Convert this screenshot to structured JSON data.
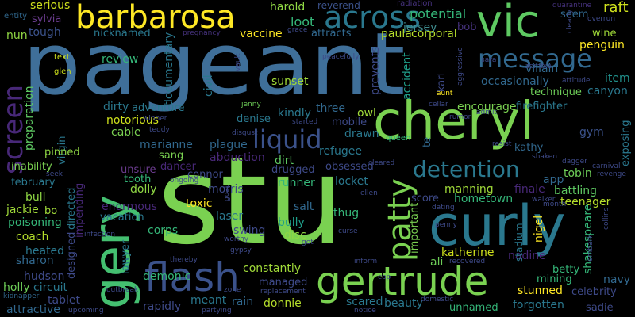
{
  "words": [
    {
      "text": "pageant",
      "color": "#3f6f99"
    },
    {
      "text": "stu",
      "color": "#7ad151"
    },
    {
      "text": "cheryl",
      "color": "#7ad151"
    },
    {
      "text": "curly",
      "color": "#2a788e"
    },
    {
      "text": "gertrude",
      "color": "#7ad151"
    },
    {
      "text": "barbarosa",
      "color": "#fde725"
    },
    {
      "text": "vic",
      "color": "#5ec962"
    },
    {
      "text": "gery",
      "color": "#44bf70"
    },
    {
      "text": "flash",
      "color": "#3b528b"
    },
    {
      "text": "across",
      "color": "#2a788e"
    },
    {
      "text": "message",
      "color": "#31688e"
    },
    {
      "text": "screen",
      "color": "#482878"
    },
    {
      "text": "patty",
      "color": "#7ad151"
    },
    {
      "text": "liquid",
      "color": "#3b528b"
    },
    {
      "text": "detention",
      "color": "#2a788e"
    },
    {
      "text": "serious",
      "color": "#cfe11c"
    },
    {
      "text": "harold",
      "color": "#8fd744"
    },
    {
      "text": "reverend",
      "color": "#3b528b"
    },
    {
      "text": "radiation",
      "color": "#46327e"
    },
    {
      "text": "quarantine",
      "color": "#46327e"
    },
    {
      "text": "raft",
      "color": "#cfe11c"
    },
    {
      "text": "entity",
      "color": "#31688e"
    },
    {
      "text": "sylvia",
      "color": "#6b3c8e"
    },
    {
      "text": "loot",
      "color": "#35b779"
    },
    {
      "text": "potential",
      "color": "#35b779"
    },
    {
      "text": "jersey",
      "color": "#3e8a8c"
    },
    {
      "text": "bob",
      "color": "#46327e"
    },
    {
      "text": "nun",
      "color": "#90d743"
    },
    {
      "text": "tough",
      "color": "#3b528b"
    },
    {
      "text": "nicknamed",
      "color": "#2a788e"
    },
    {
      "text": "vaccine",
      "color": "#fde725"
    },
    {
      "text": "attracts",
      "color": "#31688e"
    },
    {
      "text": "paula",
      "color": "#b5de2b"
    },
    {
      "text": "corporal",
      "color": "#b5de2b"
    },
    {
      "text": "wine",
      "color": "#a0da39"
    },
    {
      "text": "seem",
      "color": "#31688e"
    },
    {
      "text": "penguin",
      "color": "#fde725"
    },
    {
      "text": "text",
      "color": "#cfe11c"
    },
    {
      "text": "glen",
      "color": "#cfe11c"
    },
    {
      "text": "pregnancy",
      "color": "#46327e"
    },
    {
      "text": "preparation",
      "color": "#5ec962"
    },
    {
      "text": "review",
      "color": "#35b779"
    },
    {
      "text": "documentary",
      "color": "#2a788e"
    },
    {
      "text": "civil",
      "color": "#2a788e"
    },
    {
      "text": "sunset",
      "color": "#a0da39"
    },
    {
      "text": "prevents",
      "color": "#3e4a89"
    },
    {
      "text": "accident",
      "color": "#1f9e89"
    },
    {
      "text": "karl",
      "color": "#3e4a89"
    },
    {
      "text": "villain",
      "color": "#31688e"
    },
    {
      "text": "occasionally",
      "color": "#31688e"
    },
    {
      "text": "technique",
      "color": "#6ece58"
    },
    {
      "text": "item",
      "color": "#21918c"
    },
    {
      "text": "canyon",
      "color": "#2a788e"
    },
    {
      "text": "dirty",
      "color": "#2a788e"
    },
    {
      "text": "adventure",
      "color": "#2a788e"
    },
    {
      "text": "jenny",
      "color": "#6ece58"
    },
    {
      "text": "kindly",
      "color": "#2a788e"
    },
    {
      "text": "three",
      "color": "#31688e"
    },
    {
      "text": "encourage",
      "color": "#7ad151"
    },
    {
      "text": "firefighter",
      "color": "#2a788e"
    },
    {
      "text": "notorious",
      "color": "#cfe11c"
    },
    {
      "text": "cable",
      "color": "#7ad151"
    },
    {
      "text": "denise",
      "color": "#2a788e"
    },
    {
      "text": "owl",
      "color": "#a0da39"
    },
    {
      "text": "mobile",
      "color": "#3e4a89"
    },
    {
      "text": "virgin",
      "color": "#2a788e"
    },
    {
      "text": "marianne",
      "color": "#31688e"
    },
    {
      "text": "sang",
      "color": "#7ad151"
    },
    {
      "text": "plague",
      "color": "#31688e"
    },
    {
      "text": "dancer",
      "color": "#482878"
    },
    {
      "text": "abduction",
      "color": "#482878"
    },
    {
      "text": "drawn",
      "color": "#2a788e"
    },
    {
      "text": "queen",
      "color": "#35b779"
    },
    {
      "text": "kathy",
      "color": "#31688e"
    },
    {
      "text": "exposing",
      "color": "#2a788e"
    },
    {
      "text": "gym",
      "color": "#3b528b"
    },
    {
      "text": "pinned",
      "color": "#8fd744"
    },
    {
      "text": "inability",
      "color": "#7ad151"
    },
    {
      "text": "unsure",
      "color": "#6b3c8e"
    },
    {
      "text": "connor",
      "color": "#3e4a89"
    },
    {
      "text": "dirt",
      "color": "#5ec962"
    },
    {
      "text": "refugee",
      "color": "#2a788e"
    },
    {
      "text": "drugged",
      "color": "#3e4a89"
    },
    {
      "text": "obsessed",
      "color": "#3e4a89"
    },
    {
      "text": "february",
      "color": "#2a788e"
    },
    {
      "text": "tooth",
      "color": "#35b779"
    },
    {
      "text": "dolly",
      "color": "#8fd744"
    },
    {
      "text": "morris",
      "color": "#3e4a89"
    },
    {
      "text": "toxic",
      "color": "#fde725"
    },
    {
      "text": "runner",
      "color": "#35b779"
    },
    {
      "text": "locket",
      "color": "#2a788e"
    },
    {
      "text": "app",
      "color": "#31688e"
    },
    {
      "text": "tobin",
      "color": "#6ece58"
    },
    {
      "text": "bull",
      "color": "#8fd744"
    },
    {
      "text": "jackie",
      "color": "#a0da39"
    },
    {
      "text": "bo",
      "color": "#a0da39"
    },
    {
      "text": "enormous",
      "color": "#482878"
    },
    {
      "text": "manning",
      "color": "#a0da39"
    },
    {
      "text": "finale",
      "color": "#482878"
    },
    {
      "text": "battling",
      "color": "#5ec962"
    },
    {
      "text": "poisoning",
      "color": "#35b779"
    },
    {
      "text": "vacation",
      "color": "#2a788e"
    },
    {
      "text": "impending",
      "color": "#482878"
    },
    {
      "text": "directed",
      "color": "#2a788e"
    },
    {
      "text": "designed",
      "color": "#3e4a89"
    },
    {
      "text": "hometown",
      "color": "#35b779"
    },
    {
      "text": "score",
      "color": "#3e4a89"
    },
    {
      "text": "teenager",
      "color": "#b5de2b"
    },
    {
      "text": "coach",
      "color": "#b5de2b"
    },
    {
      "text": "laser",
      "color": "#2a788e"
    },
    {
      "text": "salt",
      "color": "#31688e"
    },
    {
      "text": "thug",
      "color": "#35b779"
    },
    {
      "text": "nigel",
      "color": "#fde725"
    },
    {
      "text": "shakespeare",
      "color": "#35b779"
    },
    {
      "text": "heated",
      "color": "#2a788e"
    },
    {
      "text": "corps",
      "color": "#35b779"
    },
    {
      "text": "swing",
      "color": "#3e4a89"
    },
    {
      "text": "bully",
      "color": "#1f9e89"
    },
    {
      "text": "disc",
      "color": "#8fd744"
    },
    {
      "text": "katherine",
      "color": "#cfe11c"
    },
    {
      "text": "nadine",
      "color": "#482878"
    },
    {
      "text": "sharon",
      "color": "#31688e"
    },
    {
      "text": "hudson",
      "color": "#3e4a89"
    },
    {
      "text": "lawyer",
      "color": "#2a788e"
    },
    {
      "text": "constantly",
      "color": "#a0da39"
    },
    {
      "text": "ali",
      "color": "#6ece58"
    },
    {
      "text": "betty",
      "color": "#35b779"
    },
    {
      "text": "navy",
      "color": "#31688e"
    },
    {
      "text": "holly",
      "color": "#6ece58"
    },
    {
      "text": "circuit",
      "color": "#2a788e"
    },
    {
      "text": "demonic",
      "color": "#35b779"
    },
    {
      "text": "managed",
      "color": "#3e4a89"
    },
    {
      "text": "mining",
      "color": "#35b779"
    },
    {
      "text": "celebrity",
      "color": "#3e4a89"
    },
    {
      "text": "tablet",
      "color": "#3e4a89"
    },
    {
      "text": "rapidly",
      "color": "#3e4a89"
    },
    {
      "text": "meant",
      "color": "#2a788e"
    },
    {
      "text": "rain",
      "color": "#31688e"
    },
    {
      "text": "donnie",
      "color": "#b5de2b"
    },
    {
      "text": "scared",
      "color": "#2a788e"
    },
    {
      "text": "stunned",
      "color": "#fde725"
    },
    {
      "text": "sadie",
      "color": "#3e4a89"
    },
    {
      "text": "attractive",
      "color": "#31688e"
    },
    {
      "text": "beauty",
      "color": "#2a788e"
    },
    {
      "text": "unnamed",
      "color": "#35b779"
    },
    {
      "text": "forgotten",
      "color": "#2a788e"
    },
    {
      "text": "important",
      "color": "#7ad151"
    },
    {
      "text": "stadium",
      "color": "#2a788e"
    },
    {
      "text": "te",
      "color": "#31688e"
    },
    {
      "text": "kidnapper",
      "color": "#31688e"
    },
    {
      "text": "upcoming",
      "color": "#3e4a89"
    },
    {
      "text": "outbreak",
      "color": "#3e4a89"
    },
    {
      "text": "thereby",
      "color": "#3e4a89"
    },
    {
      "text": "zone",
      "color": "#3e4a89"
    },
    {
      "text": "replacement",
      "color": "#3e4a89"
    },
    {
      "text": "partying",
      "color": "#3e4a89"
    },
    {
      "text": "cop",
      "color": "#3e4a89"
    },
    {
      "text": "notice",
      "color": "#3e4a89"
    },
    {
      "text": "domestic",
      "color": "#3e4a89"
    },
    {
      "text": "infection",
      "color": "#3e4a89"
    },
    {
      "text": "gypsy",
      "color": "#3e4a89"
    },
    {
      "text": "worthy",
      "color": "#3e4a89"
    },
    {
      "text": "got",
      "color": "#3e4a89"
    },
    {
      "text": "inform",
      "color": "#3e4a89"
    },
    {
      "text": "curse",
      "color": "#3e4a89"
    },
    {
      "text": "recovered",
      "color": "#3e4a89"
    },
    {
      "text": "embark",
      "color": "#3e4a89"
    },
    {
      "text": "collins",
      "color": "#3e4a89"
    },
    {
      "text": "revenge",
      "color": "#3e4a89"
    },
    {
      "text": "carnival",
      "color": "#3e4a89"
    },
    {
      "text": "dagger",
      "color": "#3e4a89"
    },
    {
      "text": "resist",
      "color": "#3e4a89"
    },
    {
      "text": "shaken",
      "color": "#3e4a89"
    },
    {
      "text": "walker",
      "color": "#3e4a89"
    },
    {
      "text": "month",
      "color": "#3e4a89"
    },
    {
      "text": "dating",
      "color": "#3e4a89"
    },
    {
      "text": "penny",
      "color": "#3e4a89"
    },
    {
      "text": "ellen",
      "color": "#3e4a89"
    },
    {
      "text": "cleared",
      "color": "#3e4a89"
    },
    {
      "text": "seek",
      "color": "#3e4a89"
    },
    {
      "text": "ongoing",
      "color": "#3e4a89"
    },
    {
      "text": "goat",
      "color": "#3e4a89"
    },
    {
      "text": "teddy",
      "color": "#3e4a89"
    },
    {
      "text": "winner",
      "color": "#3e4a89"
    },
    {
      "text": "disgust",
      "color": "#3e4a89"
    },
    {
      "text": "started",
      "color": "#3e4a89"
    },
    {
      "text": "cellar",
      "color": "#3e4a89"
    },
    {
      "text": "aunt",
      "color": "#fde725"
    },
    {
      "text": "admit",
      "color": "#3e4a89"
    },
    {
      "text": "rumor",
      "color": "#3e4a89"
    },
    {
      "text": "attitude",
      "color": "#3e4a89"
    },
    {
      "text": "zombie",
      "color": "#3e4a89"
    },
    {
      "text": "sara",
      "color": "#3e4a89"
    },
    {
      "text": "aggressive",
      "color": "#3e4a89"
    },
    {
      "text": "clearly",
      "color": "#3e4a89"
    },
    {
      "text": "overrun",
      "color": "#3e4a89"
    },
    {
      "text": "peacefully",
      "color": "#3e4a89"
    },
    {
      "text": "vault",
      "color": "#3e4a89"
    },
    {
      "text": "grace",
      "color": "#3e4a89"
    }
  ]
}
